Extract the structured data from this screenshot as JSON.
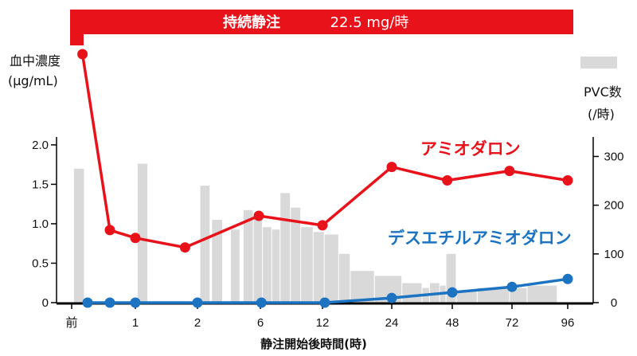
{
  "banner": {
    "infusion_label": "持続静注",
    "dose_label": "22.5 mg/時"
  },
  "colors": {
    "banner": "#e8121b",
    "axis": "#000000"
  },
  "chart_data": {
    "type": "line",
    "x_axis": {
      "title": "静注開始後時間(時)",
      "tick_labels": [
        "前",
        "1",
        "2",
        "6",
        "12",
        "24",
        "48",
        "72",
        "96"
      ],
      "tick_values": [
        0,
        1,
        2,
        6,
        12,
        24,
        48,
        72,
        96
      ]
    },
    "y_left": {
      "title": [
        "血中濃度",
        "(μg/mL)"
      ],
      "ticks": [
        0,
        0.5,
        1.0,
        1.5,
        2.0
      ],
      "tick_labels": [
        "0",
        "0.5",
        "1.0",
        "1.5",
        "2.0"
      ],
      "range": [
        0,
        2.1
      ]
    },
    "y_right": {
      "title": [
        "PVC数",
        "(/時)"
      ],
      "ticks": [
        0,
        100,
        200,
        300
      ],
      "tick_labels": [
        "0",
        "100",
        "200",
        "300"
      ],
      "range": [
        0,
        340
      ]
    },
    "series": [
      {
        "name": "アミオダロン",
        "axis": "left",
        "color": "#e8121b",
        "x": [
          0.17,
          0.6,
          1.0,
          1.8,
          5.9,
          12,
          24,
          46,
          71,
          96
        ],
        "y": [
          3.15,
          0.92,
          0.82,
          0.7,
          1.1,
          0.98,
          1.72,
          1.55,
          1.67,
          1.55
        ]
      },
      {
        "name": "デスエチルアミオダロン",
        "axis": "left",
        "color": "#1b73c2",
        "x": [
          0.25,
          0.6,
          1.0,
          2.0,
          6.1,
          12.4,
          24,
          48,
          72,
          96
        ],
        "y": [
          0,
          0,
          0,
          0,
          0,
          0,
          0.06,
          0.13,
          0.2,
          0.3
        ]
      }
    ],
    "bars": {
      "axis": "right",
      "color": "#d9d9d9",
      "intervals": [
        {
          "from": 0.03,
          "to": 0.2,
          "value": 275
        },
        {
          "from": 1.03,
          "to": 1.2,
          "value": 285
        },
        {
          "from": 2.15,
          "to": 2.8,
          "value": 240
        },
        {
          "from": 2.9,
          "to": 3.6,
          "value": 170
        },
        {
          "from": 4.1,
          "to": 4.7,
          "value": 150
        },
        {
          "from": 4.9,
          "to": 5.55,
          "value": 190
        },
        {
          "from": 5.55,
          "to": 6.2,
          "value": 180
        },
        {
          "from": 6.2,
          "to": 7.1,
          "value": 155
        },
        {
          "from": 7.1,
          "to": 7.9,
          "value": 150
        },
        {
          "from": 7.9,
          "to": 8.9,
          "value": 225
        },
        {
          "from": 8.9,
          "to": 9.9,
          "value": 195
        },
        {
          "from": 9.9,
          "to": 11.1,
          "value": 155
        },
        {
          "from": 11.1,
          "to": 12.3,
          "value": 145
        },
        {
          "from": 12.3,
          "to": 14.8,
          "value": 140
        },
        {
          "from": 14.8,
          "to": 16.8,
          "value": 100
        },
        {
          "from": 16.8,
          "to": 21,
          "value": 65
        },
        {
          "from": 21,
          "to": 28,
          "value": 55
        },
        {
          "from": 28,
          "to": 36,
          "value": 40
        },
        {
          "from": 36,
          "to": 39,
          "value": 30
        },
        {
          "from": 39,
          "to": 43,
          "value": 40
        },
        {
          "from": 43,
          "to": 45.5,
          "value": 35
        },
        {
          "from": 45.5,
          "to": 49.6,
          "value": 100
        },
        {
          "from": 49.6,
          "to": 58,
          "value": 25
        },
        {
          "from": 58,
          "to": 71,
          "value": 30
        },
        {
          "from": 71,
          "to": 78.5,
          "value": 30
        },
        {
          "from": 78.5,
          "to": 91.5,
          "value": 35
        }
      ]
    },
    "legend": {
      "position": "top-right"
    }
  }
}
